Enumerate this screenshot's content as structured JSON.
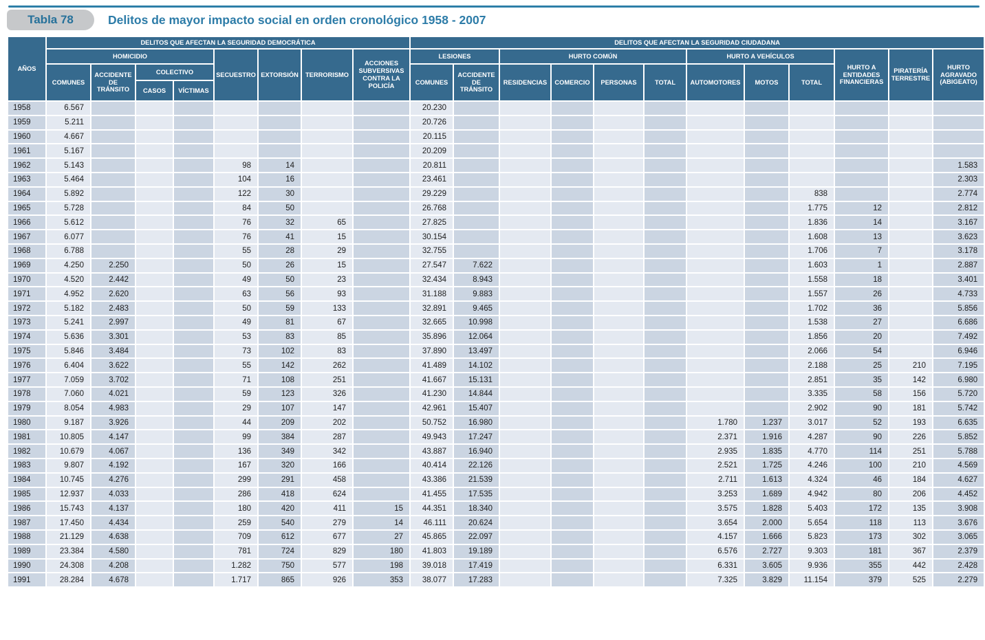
{
  "title": {
    "tab_label": "Tabla 78",
    "text": "Delitos de mayor impacto social en orden cronológico 1958 - 2007"
  },
  "colors": {
    "header_bg": "#366a8e",
    "cell_light": "#e4e9f1",
    "cell_medium": "#cbd5e2",
    "accent": "#2e7fa8",
    "tab_bg": "#c6c8ca",
    "title_text": "#2d7ca8"
  },
  "table": {
    "corner_header": "AÑOS",
    "groups": {
      "democratica": "DELITOS QUE AFECTAN LA SEGURIDAD DEMOCRÁTICA",
      "ciudadana": "DELITOS QUE AFECTAN LA SEGURIDAD CIUDADANA",
      "homicidio": "HOMICIDIO",
      "colectivo": "COLECTIVO",
      "lesiones": "LESIONES",
      "hurto_comun": "HURTO COMÚN",
      "hurto_vehiculos": "HURTO A VEHÍCULOS"
    },
    "columns": {
      "hom_comunes": "COMUNES",
      "hom_accidente": "ACCIDENTE DE TRÁNSITO",
      "casos": "CASOS",
      "victimas": "VÍCTIMAS",
      "secuestro": "SECUESTRO",
      "extorsion": "EXTORSIÓN",
      "terrorismo": "TERRORISMO",
      "acciones": "ACCIONES SUBVERSIVAS CONTRA LA POLICÍA",
      "les_comunes": "COMUNES",
      "les_accidente": "ACCIDENTE DE TRÁNSITO",
      "residencias": "RESIDENCIAS",
      "comercio": "COMERCIO",
      "personas": "PERSONAS",
      "hc_total": "TOTAL",
      "automotores": "AUTOMOTORES",
      "motos": "MOTOS",
      "hv_total": "TOTAL",
      "entidades": "HURTO A ENTIDADES FINANCIERAS",
      "pirateria": "PIRATERÍA TERRESTRE",
      "agravado": "HURTO AGRAVADO (ABIGEATO)"
    },
    "rows": [
      [
        "1958",
        "6.567",
        "",
        "",
        "",
        "",
        "",
        "",
        "",
        "20.230",
        "",
        "",
        "",
        "",
        "",
        "",
        "",
        "",
        "",
        "",
        ""
      ],
      [
        "1959",
        "5.211",
        "",
        "",
        "",
        "",
        "",
        "",
        "",
        "20.726",
        "",
        "",
        "",
        "",
        "",
        "",
        "",
        "",
        "",
        "",
        ""
      ],
      [
        "1960",
        "4.667",
        "",
        "",
        "",
        "",
        "",
        "",
        "",
        "20.115",
        "",
        "",
        "",
        "",
        "",
        "",
        "",
        "",
        "",
        "",
        ""
      ],
      [
        "1961",
        "5.167",
        "",
        "",
        "",
        "",
        "",
        "",
        "",
        "20.209",
        "",
        "",
        "",
        "",
        "",
        "",
        "",
        "",
        "",
        "",
        ""
      ],
      [
        "1962",
        "5.143",
        "",
        "",
        "",
        "98",
        "14",
        "",
        "",
        "20.811",
        "",
        "",
        "",
        "",
        "",
        "",
        "",
        "",
        "",
        "",
        "1.583"
      ],
      [
        "1963",
        "5.464",
        "",
        "",
        "",
        "104",
        "16",
        "",
        "",
        "23.461",
        "",
        "",
        "",
        "",
        "",
        "",
        "",
        "",
        "",
        "",
        "2.303"
      ],
      [
        "1964",
        "5.892",
        "",
        "",
        "",
        "122",
        "30",
        "",
        "",
        "29.229",
        "",
        "",
        "",
        "",
        "",
        "",
        "",
        "838",
        "",
        "",
        "2.774"
      ],
      [
        "1965",
        "5.728",
        "",
        "",
        "",
        "84",
        "50",
        "",
        "",
        "26.768",
        "",
        "",
        "",
        "",
        "",
        "",
        "",
        "1.775",
        "12",
        "",
        "2.812"
      ],
      [
        "1966",
        "5.612",
        "",
        "",
        "",
        "76",
        "32",
        "65",
        "",
        "27.825",
        "",
        "",
        "",
        "",
        "",
        "",
        "",
        "1.836",
        "14",
        "",
        "3.167"
      ],
      [
        "1967",
        "6.077",
        "",
        "",
        "",
        "76",
        "41",
        "15",
        "",
        "30.154",
        "",
        "",
        "",
        "",
        "",
        "",
        "",
        "1.608",
        "13",
        "",
        "3.623"
      ],
      [
        "1968",
        "6.788",
        "",
        "",
        "",
        "55",
        "28",
        "29",
        "",
        "32.755",
        "",
        "",
        "",
        "",
        "",
        "",
        "",
        "1.706",
        "7",
        "",
        "3.178"
      ],
      [
        "1969",
        "4.250",
        "2.250",
        "",
        "",
        "50",
        "26",
        "15",
        "",
        "27.547",
        "7.622",
        "",
        "",
        "",
        "",
        "",
        "",
        "1.603",
        "1",
        "",
        "2.887"
      ],
      [
        "1970",
        "4.520",
        "2.442",
        "",
        "",
        "49",
        "50",
        "23",
        "",
        "32.434",
        "8.943",
        "",
        "",
        "",
        "",
        "",
        "",
        "1.558",
        "18",
        "",
        "3.401"
      ],
      [
        "1971",
        "4.952",
        "2.620",
        "",
        "",
        "63",
        "56",
        "93",
        "",
        "31.188",
        "9.883",
        "",
        "",
        "",
        "",
        "",
        "",
        "1.557",
        "26",
        "",
        "4.733"
      ],
      [
        "1972",
        "5.182",
        "2.483",
        "",
        "",
        "50",
        "59",
        "133",
        "",
        "32.891",
        "9.465",
        "",
        "",
        "",
        "",
        "",
        "",
        "1.702",
        "36",
        "",
        "5.856"
      ],
      [
        "1973",
        "5.241",
        "2.997",
        "",
        "",
        "49",
        "81",
        "67",
        "",
        "32.665",
        "10.998",
        "",
        "",
        "",
        "",
        "",
        "",
        "1.538",
        "27",
        "",
        "6.686"
      ],
      [
        "1974",
        "5.636",
        "3.301",
        "",
        "",
        "53",
        "83",
        "85",
        "",
        "35.896",
        "12.064",
        "",
        "",
        "",
        "",
        "",
        "",
        "1.856",
        "20",
        "",
        "7.492"
      ],
      [
        "1975",
        "5.846",
        "3.484",
        "",
        "",
        "73",
        "102",
        "83",
        "",
        "37.890",
        "13.497",
        "",
        "",
        "",
        "",
        "",
        "",
        "2.066",
        "54",
        "",
        "6.946"
      ],
      [
        "1976",
        "6.404",
        "3.622",
        "",
        "",
        "55",
        "142",
        "262",
        "",
        "41.489",
        "14.102",
        "",
        "",
        "",
        "",
        "",
        "",
        "2.188",
        "25",
        "210",
        "7.195"
      ],
      [
        "1977",
        "7.059",
        "3.702",
        "",
        "",
        "71",
        "108",
        "251",
        "",
        "41.667",
        "15.131",
        "",
        "",
        "",
        "",
        "",
        "",
        "2.851",
        "35",
        "142",
        "6.980"
      ],
      [
        "1978",
        "7.060",
        "4.021",
        "",
        "",
        "59",
        "123",
        "326",
        "",
        "41.230",
        "14.844",
        "",
        "",
        "",
        "",
        "",
        "",
        "3.335",
        "58",
        "156",
        "5.720"
      ],
      [
        "1979",
        "8.054",
        "4.983",
        "",
        "",
        "29",
        "107",
        "147",
        "",
        "42.961",
        "15.407",
        "",
        "",
        "",
        "",
        "",
        "",
        "2.902",
        "90",
        "181",
        "5.742"
      ],
      [
        "1980",
        "9.187",
        "3.926",
        "",
        "",
        "44",
        "209",
        "202",
        "",
        "50.752",
        "16.980",
        "",
        "",
        "",
        "",
        "1.780",
        "1.237",
        "3.017",
        "52",
        "193",
        "6.635"
      ],
      [
        "1981",
        "10.805",
        "4.147",
        "",
        "",
        "99",
        "384",
        "287",
        "",
        "49.943",
        "17.247",
        "",
        "",
        "",
        "",
        "2.371",
        "1.916",
        "4.287",
        "90",
        "226",
        "5.852"
      ],
      [
        "1982",
        "10.679",
        "4.067",
        "",
        "",
        "136",
        "349",
        "342",
        "",
        "43.887",
        "16.940",
        "",
        "",
        "",
        "",
        "2.935",
        "1.835",
        "4.770",
        "114",
        "251",
        "5.788"
      ],
      [
        "1983",
        "9.807",
        "4.192",
        "",
        "",
        "167",
        "320",
        "166",
        "",
        "40.414",
        "22.126",
        "",
        "",
        "",
        "",
        "2.521",
        "1.725",
        "4.246",
        "100",
        "210",
        "4.569"
      ],
      [
        "1984",
        "10.745",
        "4.276",
        "",
        "",
        "299",
        "291",
        "458",
        "",
        "43.386",
        "21.539",
        "",
        "",
        "",
        "",
        "2.711",
        "1.613",
        "4.324",
        "46",
        "184",
        "4.627"
      ],
      [
        "1985",
        "12.937",
        "4.033",
        "",
        "",
        "286",
        "418",
        "624",
        "",
        "41.455",
        "17.535",
        "",
        "",
        "",
        "",
        "3.253",
        "1.689",
        "4.942",
        "80",
        "206",
        "4.452"
      ],
      [
        "1986",
        "15.743",
        "4.137",
        "",
        "",
        "180",
        "420",
        "411",
        "15",
        "44.351",
        "18.340",
        "",
        "",
        "",
        "",
        "3.575",
        "1.828",
        "5.403",
        "172",
        "135",
        "3.908"
      ],
      [
        "1987",
        "17.450",
        "4.434",
        "",
        "",
        "259",
        "540",
        "279",
        "14",
        "46.111",
        "20.624",
        "",
        "",
        "",
        "",
        "3.654",
        "2.000",
        "5.654",
        "118",
        "113",
        "3.676"
      ],
      [
        "1988",
        "21.129",
        "4.638",
        "",
        "",
        "709",
        "612",
        "677",
        "27",
        "45.865",
        "22.097",
        "",
        "",
        "",
        "",
        "4.157",
        "1.666",
        "5.823",
        "173",
        "302",
        "3.065"
      ],
      [
        "1989",
        "23.384",
        "4.580",
        "",
        "",
        "781",
        "724",
        "829",
        "180",
        "41.803",
        "19.189",
        "",
        "",
        "",
        "",
        "6.576",
        "2.727",
        "9.303",
        "181",
        "367",
        "2.379"
      ],
      [
        "1990",
        "24.308",
        "4.208",
        "",
        "",
        "1.282",
        "750",
        "577",
        "198",
        "39.018",
        "17.419",
        "",
        "",
        "",
        "",
        "6.331",
        "3.605",
        "9.936",
        "355",
        "442",
        "2.428"
      ],
      [
        "1991",
        "28.284",
        "4.678",
        "",
        "",
        "1.717",
        "865",
        "926",
        "353",
        "38.077",
        "17.283",
        "",
        "",
        "",
        "",
        "7.325",
        "3.829",
        "11.154",
        "379",
        "525",
        "2.279"
      ]
    ]
  }
}
